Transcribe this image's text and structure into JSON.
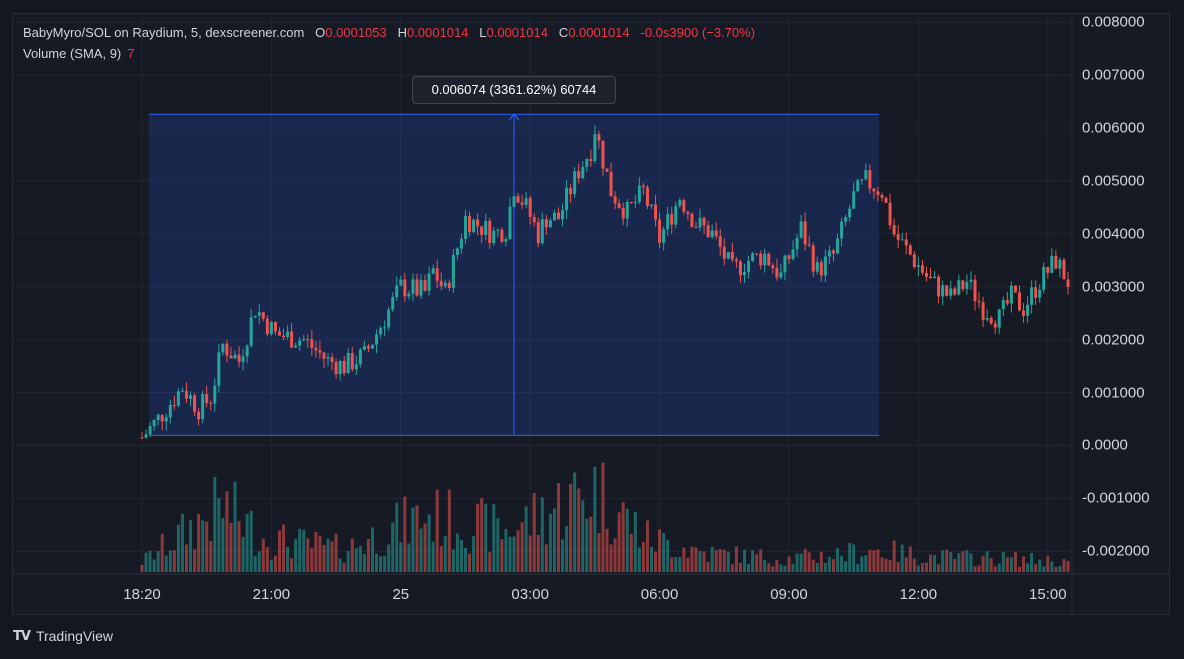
{
  "legend": {
    "symbol": "BabyMyro/SOL on Raydium, 5, dexscreener.com",
    "open_label": "O",
    "open": "0.0001053",
    "high_label": "H",
    "high": "0.0001014",
    "low_label": "L",
    "low": "0.0001014",
    "close_label": "C",
    "close": "0.0001014",
    "change": "-0.0s3900 (−3.70%)",
    "volume_label": "Volume (SMA, 9)",
    "volume_value": "7"
  },
  "measure": {
    "label": "0.006074 (3361.62%) 60744",
    "from_price": 0.00019,
    "to_price": 0.00626
  },
  "brand": {
    "name": "TradingView"
  },
  "colors": {
    "up": "#26a69a",
    "down": "#ef5350",
    "measure": "#2962ff",
    "background": "#161a25"
  },
  "chart_data": {
    "type": "candlestick",
    "title": "BabyMyro/SOL on Raydium, 5, dexscreener.com",
    "y_tick_labels": [
      "0.008000",
      "0.007000",
      "0.006000",
      "0.005000",
      "0.004000",
      "0.003000",
      "0.002000",
      "0.001000",
      "0.0000",
      "-0.001000",
      "-0.002000"
    ],
    "y_ticks": [
      0.008,
      0.007,
      0.006,
      0.005,
      0.004,
      0.003,
      0.002,
      0.001,
      0,
      -0.001,
      -0.002
    ],
    "ylim": [
      -0.00243,
      0.00842
    ],
    "x_tick_labels": [
      "18:20",
      "21:00",
      "25",
      "03:00",
      "06:00",
      "09:00",
      "12:00",
      "15:00"
    ],
    "x_ticks": [
      0,
      32,
      64,
      96,
      128,
      160,
      192,
      224
    ],
    "candle_count": 230,
    "series": [
      {
        "name": "price",
        "values": [
          [
            0,
            0.00015
          ],
          [
            4,
            0.0005
          ],
          [
            10,
            0.0011
          ],
          [
            14,
            0.0007
          ],
          [
            17,
            0.0009
          ],
          [
            20,
            0.0019
          ],
          [
            24,
            0.0016
          ],
          [
            28,
            0.0026
          ],
          [
            33,
            0.0021
          ],
          [
            40,
            0.002
          ],
          [
            46,
            0.0016
          ],
          [
            50,
            0.0015
          ],
          [
            55,
            0.0017
          ],
          [
            60,
            0.0024
          ],
          [
            64,
            0.003
          ],
          [
            70,
            0.0029
          ],
          [
            72,
            0.0033
          ],
          [
            75,
            0.0029
          ],
          [
            80,
            0.0043
          ],
          [
            87,
            0.004
          ],
          [
            90,
            0.0041
          ],
          [
            92,
            0.0049
          ],
          [
            95,
            0.0045
          ],
          [
            98,
            0.004
          ],
          [
            100,
            0.0043
          ],
          [
            103,
            0.0043
          ],
          [
            108,
            0.0052
          ],
          [
            111,
            0.0056
          ],
          [
            112,
            0.006
          ],
          [
            116,
            0.0048
          ],
          [
            120,
            0.0044
          ],
          [
            124,
            0.0048
          ],
          [
            128,
            0.0039
          ],
          [
            133,
            0.0047
          ],
          [
            137,
            0.0042
          ],
          [
            141,
            0.004
          ],
          [
            146,
            0.0033
          ],
          [
            150,
            0.0035
          ],
          [
            154,
            0.0036
          ],
          [
            158,
            0.0032
          ],
          [
            163,
            0.0041
          ],
          [
            167,
            0.0033
          ],
          [
            171,
            0.0036
          ],
          [
            176,
            0.0047
          ],
          [
            179,
            0.005
          ],
          [
            183,
            0.0048
          ],
          [
            186,
            0.004
          ],
          [
            190,
            0.0036
          ],
          [
            195,
            0.0031
          ],
          [
            200,
            0.0028
          ],
          [
            204,
            0.0031
          ],
          [
            208,
            0.0026
          ],
          [
            212,
            0.0024
          ],
          [
            215,
            0.0028
          ],
          [
            218,
            0.0026
          ],
          [
            222,
            0.0031
          ],
          [
            226,
            0.0035
          ],
          [
            229,
            0.0031
          ]
        ]
      },
      {
        "name": "volume",
        "scale_max": 0.0076,
        "values": [
          [
            0,
            0.00055
          ],
          [
            20,
            0.0035
          ],
          [
            30,
            0.0018
          ],
          [
            50,
            0.0012
          ],
          [
            70,
            0.003
          ],
          [
            90,
            0.0022
          ],
          [
            100,
            0.0032
          ],
          [
            112,
            0.0044
          ],
          [
            125,
            0.0018
          ],
          [
            140,
            0.001
          ],
          [
            160,
            0.0007
          ],
          [
            175,
            0.001
          ],
          [
            180,
            0.0012
          ],
          [
            195,
            0.0008
          ],
          [
            215,
            0.0007
          ],
          [
            229,
            0.00055
          ]
        ]
      }
    ]
  }
}
